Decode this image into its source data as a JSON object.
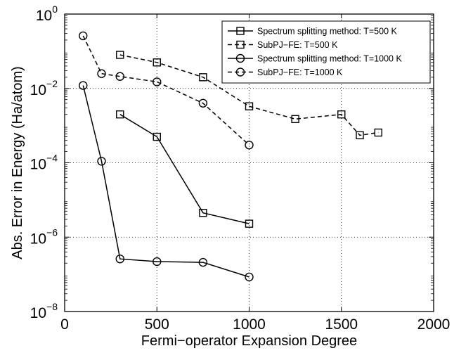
{
  "chart_data": {
    "type": "line",
    "xlabel": "Fermi−operator Expansion Degree",
    "ylabel": "Abs. Error in Energy (Ha/atom)",
    "xlim": [
      0,
      2000
    ],
    "ylim": [
      1e-08,
      1
    ],
    "yscale": "log",
    "grid": true,
    "legend_position": "top-right",
    "x_ticks": [
      "0",
      "500",
      "1000",
      "1500",
      "2000"
    ],
    "y_ticks": [
      {
        "base": "10",
        "exp": "0"
      },
      {
        "base": "10",
        "exp": "−2"
      },
      {
        "base": "10",
        "exp": "−4"
      },
      {
        "base": "10",
        "exp": "−6"
      },
      {
        "base": "10",
        "exp": "−8"
      }
    ],
    "series": [
      {
        "name": "Spectrum splitting method: T=500 K",
        "marker": "square",
        "line": "solid",
        "x": [
          300,
          500,
          750,
          1000
        ],
        "y": [
          0.002,
          0.0005,
          4.5e-06,
          2.3e-06
        ]
      },
      {
        "name": "SubPJ−FE: T=500 K",
        "marker": "square",
        "line": "dashed",
        "x": [
          300,
          500,
          750,
          1000,
          1250,
          1500,
          1600,
          1700
        ],
        "y": [
          0.08,
          0.05,
          0.02,
          0.0033,
          0.0015,
          0.002,
          0.00055,
          0.00065
        ]
      },
      {
        "name": "Spectrum splitting method: T=1000 K",
        "marker": "circle",
        "line": "solid",
        "x": [
          100,
          200,
          300,
          500,
          750,
          1000
        ],
        "y": [
          0.012,
          0.00011,
          2.6e-07,
          2.2e-07,
          2.1e-07,
          8.5e-08
        ]
      },
      {
        "name": "SubPJ−FE: T=1000 K",
        "marker": "circle",
        "line": "dashed",
        "x": [
          100,
          200,
          300,
          500,
          750,
          1000
        ],
        "y": [
          0.26,
          0.025,
          0.021,
          0.015,
          0.004,
          0.0003
        ]
      }
    ]
  }
}
